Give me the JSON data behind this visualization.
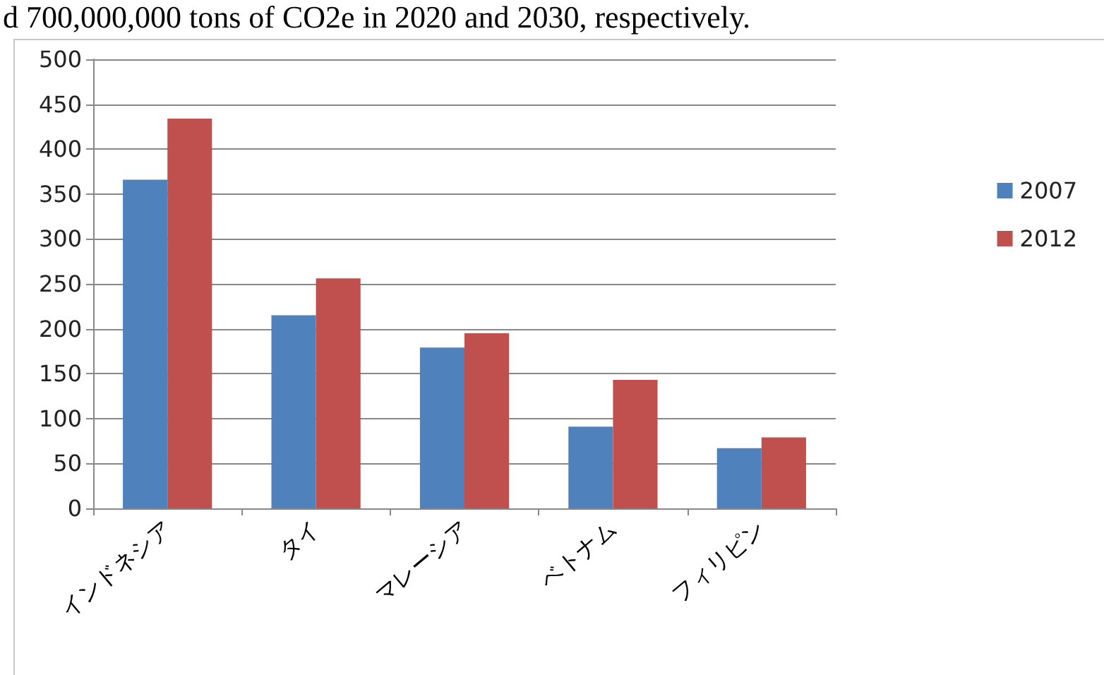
{
  "chart_data": {
    "type": "bar",
    "categories": [
      "インドネシア",
      "タイ",
      "マレーシア",
      "ベトナム",
      "フィリピン"
    ],
    "series": [
      {
        "name": "2007",
        "color": "#4f81bd",
        "values": [
          366,
          215,
          179,
          91,
          67
        ]
      },
      {
        "name": "2012",
        "color": "#c0504d",
        "values": [
          434,
          256,
          195,
          143,
          79
        ]
      }
    ],
    "ylim": [
      0,
      500
    ],
    "yticks": [
      0,
      50,
      100,
      150,
      200,
      250,
      300,
      350,
      400,
      450,
      500
    ],
    "grid": "y",
    "legend": "right",
    "annotations": [
      "d 700,000,000 tons of CO2e in 2020 and 2030, respectively."
    ]
  }
}
